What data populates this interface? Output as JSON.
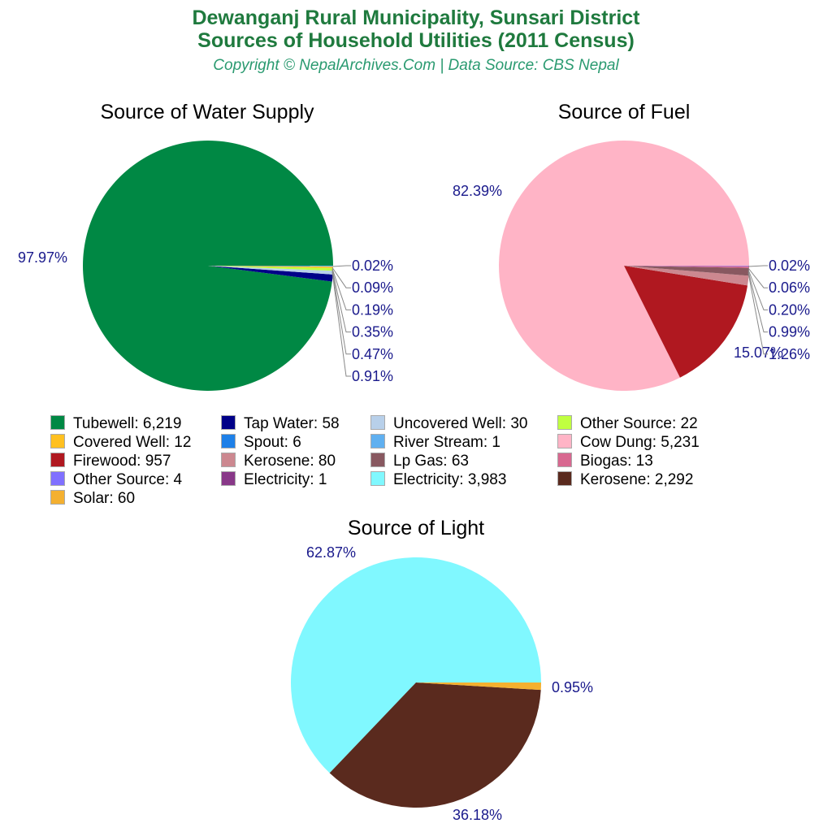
{
  "header": {
    "title_line1": "Dewanganj Rural Municipality, Sunsari District",
    "title_line2": "Sources of Household Utilities (2011 Census)",
    "subtitle": "Copyright © NepalArchives.Com | Data Source: CBS Nepal"
  },
  "charts": {
    "water": {
      "title": "Source of Water Supply"
    },
    "fuel": {
      "title": "Source of Fuel"
    },
    "light": {
      "title": "Source of Light"
    }
  },
  "legend": [
    {
      "label": "Tubewell: 6,219",
      "color": "#008844"
    },
    {
      "label": "Covered Well: 12",
      "color": "#ffc020"
    },
    {
      "label": "Firewood: 957",
      "color": "#b01820"
    },
    {
      "label": "Other Source: 4",
      "color": "#8070ff"
    },
    {
      "label": "Solar: 60",
      "color": "#f4b030"
    },
    {
      "label": "Tap Water: 58",
      "color": "#000088"
    },
    {
      "label": "Spout: 6",
      "color": "#1e80e8"
    },
    {
      "label": "Kerosene: 80",
      "color": "#cc8890"
    },
    {
      "label": "Electricity: 1",
      "color": "#883888"
    },
    {
      "label": "Uncovered Well: 30",
      "color": "#b8d0ea"
    },
    {
      "label": "River Stream: 1",
      "color": "#60b0f0"
    },
    {
      "label": "Lp Gas: 63",
      "color": "#885860"
    },
    {
      "label": "Electricity: 3,983",
      "color": "#80f8ff"
    },
    {
      "label": "Other Source: 22",
      "color": "#c0ff40"
    },
    {
      "label": "Cow Dung: 5,231",
      "color": "#ffb4c6"
    },
    {
      "label": "Biogas: 13",
      "color": "#d86890"
    },
    {
      "label": "Kerosene: 2,292",
      "color": "#5a2a1e"
    }
  ],
  "chart_data": [
    {
      "type": "pie",
      "title": "Source of Water Supply",
      "categories": [
        "Tubewell",
        "Tap Water",
        "Uncovered Well",
        "Other Source",
        "Covered Well",
        "Spout",
        "River Stream"
      ],
      "values": [
        6219,
        58,
        30,
        22,
        12,
        6,
        1
      ],
      "percent_labels": [
        "97.97%",
        "0.91%",
        "0.47%",
        "0.35%",
        "0.19%",
        "0.09%",
        "0.02%"
      ],
      "colors": [
        "#008844",
        "#000088",
        "#b8d0ea",
        "#c0ff40",
        "#ffc020",
        "#1e80e8",
        "#60b0f0"
      ]
    },
    {
      "type": "pie",
      "title": "Source of Fuel",
      "categories": [
        "Cow Dung",
        "Firewood",
        "Kerosene",
        "Lp Gas",
        "Biogas",
        "Other Source",
        "Electricity"
      ],
      "values": [
        5231,
        957,
        80,
        63,
        13,
        4,
        1
      ],
      "percent_labels": [
        "82.39%",
        "15.07%",
        "1.26%",
        "0.99%",
        "0.20%",
        "0.06%",
        "0.02%"
      ],
      "colors": [
        "#ffb4c6",
        "#b01820",
        "#cc8890",
        "#885860",
        "#d86890",
        "#8070ff",
        "#883888"
      ]
    },
    {
      "type": "pie",
      "title": "Source of Light",
      "categories": [
        "Electricity",
        "Kerosene",
        "Solar"
      ],
      "values": [
        3983,
        2292,
        60
      ],
      "percent_labels": [
        "62.87%",
        "36.18%",
        "0.95%"
      ],
      "colors": [
        "#80f8ff",
        "#5a2a1e",
        "#f4b030"
      ]
    }
  ]
}
